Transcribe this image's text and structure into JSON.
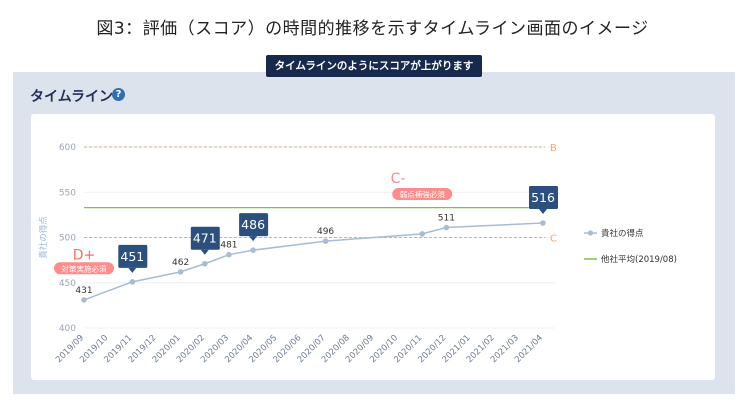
{
  "figure_title": "図3：評価（スコア）の時間的推移を示すタイムライン画面のイメージ",
  "banner": "タイムラインのようにスコアが上がります",
  "panel": {
    "title": "タイムライン",
    "help_icon": "question-circle-icon"
  },
  "chart_data": {
    "type": "line",
    "ylabel": "貴社の得点",
    "ylim": [
      400,
      600
    ],
    "yticks": [
      400,
      450,
      500,
      550,
      600
    ],
    "categories": [
      "2019/09",
      "2019/10",
      "2019/11",
      "2019/12",
      "2020/01",
      "2020/02",
      "2020/03",
      "2020/04",
      "2020/05",
      "2020/06",
      "2020/07",
      "2020/08",
      "2020/09",
      "2020/10",
      "2020/11",
      "2020/12",
      "2021/01",
      "2021/02",
      "2021/03",
      "2021/04"
    ],
    "series": [
      {
        "name": "貴社の得点",
        "color": "#a8bcd4",
        "points": [
          {
            "x": "2019/09",
            "y": 431,
            "label": "431"
          },
          {
            "x": "2019/11",
            "y": 451,
            "label": "451",
            "badge": true
          },
          {
            "x": "2020/01",
            "y": 462,
            "label": "462"
          },
          {
            "x": "2020/02",
            "y": 471,
            "label": "471",
            "badge": true
          },
          {
            "x": "2020/03",
            "y": 481,
            "label": "481"
          },
          {
            "x": "2020/04",
            "y": 486,
            "label": "486",
            "badge": true
          },
          {
            "x": "2020/07",
            "y": 496,
            "label": "496"
          },
          {
            "x": "2020/11",
            "y": 504
          },
          {
            "x": "2020/12",
            "y": 511,
            "label": "511"
          },
          {
            "x": "2021/04",
            "y": 516,
            "label": "516",
            "badge": true
          }
        ]
      },
      {
        "name": "他社平均(2019/08)",
        "color": "#7dc242",
        "value": 533
      }
    ],
    "thresholds": [
      {
        "label": "B",
        "y": 600,
        "color": "#f0a77a"
      },
      {
        "label": "C",
        "y": 500,
        "color": "#f0a77a"
      }
    ],
    "annotations": [
      {
        "text": "D+",
        "x": "2019/09",
        "y": 481,
        "color": "#ff6f61"
      },
      {
        "text": "対策実施必須",
        "x": "2019/09",
        "y": 466,
        "color": "#ff8b8b"
      },
      {
        "text": "C-",
        "x": "2020/10",
        "y": 566,
        "color": "#ff8b8b"
      },
      {
        "text": "弱点補強必須",
        "x": "2020/11",
        "y": 548,
        "color": "#ff8b8b"
      }
    ],
    "legend_placement": "right",
    "badge_color": "#2b4f7e"
  }
}
